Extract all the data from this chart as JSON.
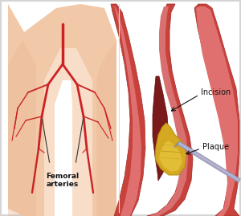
{
  "background_color": "#ffffff",
  "border_color": "#cccccc",
  "skin_color": "#f2c9a8",
  "skin_shadow": "#e8b898",
  "artery_red": "#cc2222",
  "artery_dark": "#aa1111",
  "vessel_outer": "#c8413a",
  "vessel_inner": "#e07070",
  "vessel_dark": "#a03030",
  "vessel_wall": "#d45050",
  "plaque_color": "#d4a820",
  "plaque_light": "#e8c840",
  "plaque_dark": "#b89010",
  "instrument_color": "#aaaacc",
  "instrument_light": "#ccccee",
  "instrument_dark": "#888899",
  "label_color": "#111111",
  "title_left": "Femoral\narteries",
  "label_incision": "Incision",
  "label_plaque": "Plaque",
  "figsize": [
    3.0,
    2.69
  ],
  "dpi": 100
}
